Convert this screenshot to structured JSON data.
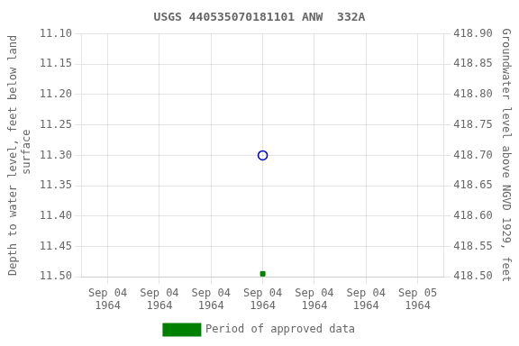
{
  "chart_data": {
    "type": "scatter",
    "title": "USGS 440535070181101 ANW  332A",
    "ylabel": "Depth to water level, feet below land\n surface",
    "y2label": "Groundwater level above NGVD 1929, feet",
    "categories": [
      "Sep 04\n1964",
      "Sep 04\n1964",
      "Sep 04\n1964",
      "Sep 04\n1964",
      "Sep 04\n1964",
      "Sep 04\n1964",
      "Sep 05\n1964"
    ],
    "series": [
      {
        "color": "#0000cc",
        "marker": "circle_open",
        "values": [
          null,
          null,
          null,
          11.3,
          null,
          null,
          null
        ]
      },
      {
        "name": "Period of approved data",
        "color": "#008000",
        "marker": "square_filled",
        "values": [
          null,
          null,
          null,
          11.495,
          null,
          null,
          null
        ]
      }
    ],
    "ylim": [
      11.5,
      11.1
    ],
    "yticks": [
      {
        "value": 11.1,
        "label": "11.10"
      },
      11.15,
      {
        "value": 11.2,
        "label": "11.20"
      },
      11.25,
      {
        "value": 11.3,
        "label": "11.30"
      },
      11.35,
      {
        "value": 11.4,
        "label": "11.40"
      },
      11.45,
      {
        "value": 11.5,
        "label": "11.50"
      }
    ],
    "y2lim": [
      418.5,
      418.9
    ],
    "y2ticks": [
      {
        "value": 418.9,
        "label": "418.90"
      },
      418.85,
      {
        "value": 418.8,
        "label": "418.80"
      },
      418.75,
      {
        "value": 418.7,
        "label": "418.70"
      },
      418.65,
      {
        "value": 418.6,
        "label": "418.60"
      },
      418.55,
      {
        "value": 418.5,
        "label": "418.50"
      }
    ],
    "grid": true,
    "legend": "bottom"
  }
}
